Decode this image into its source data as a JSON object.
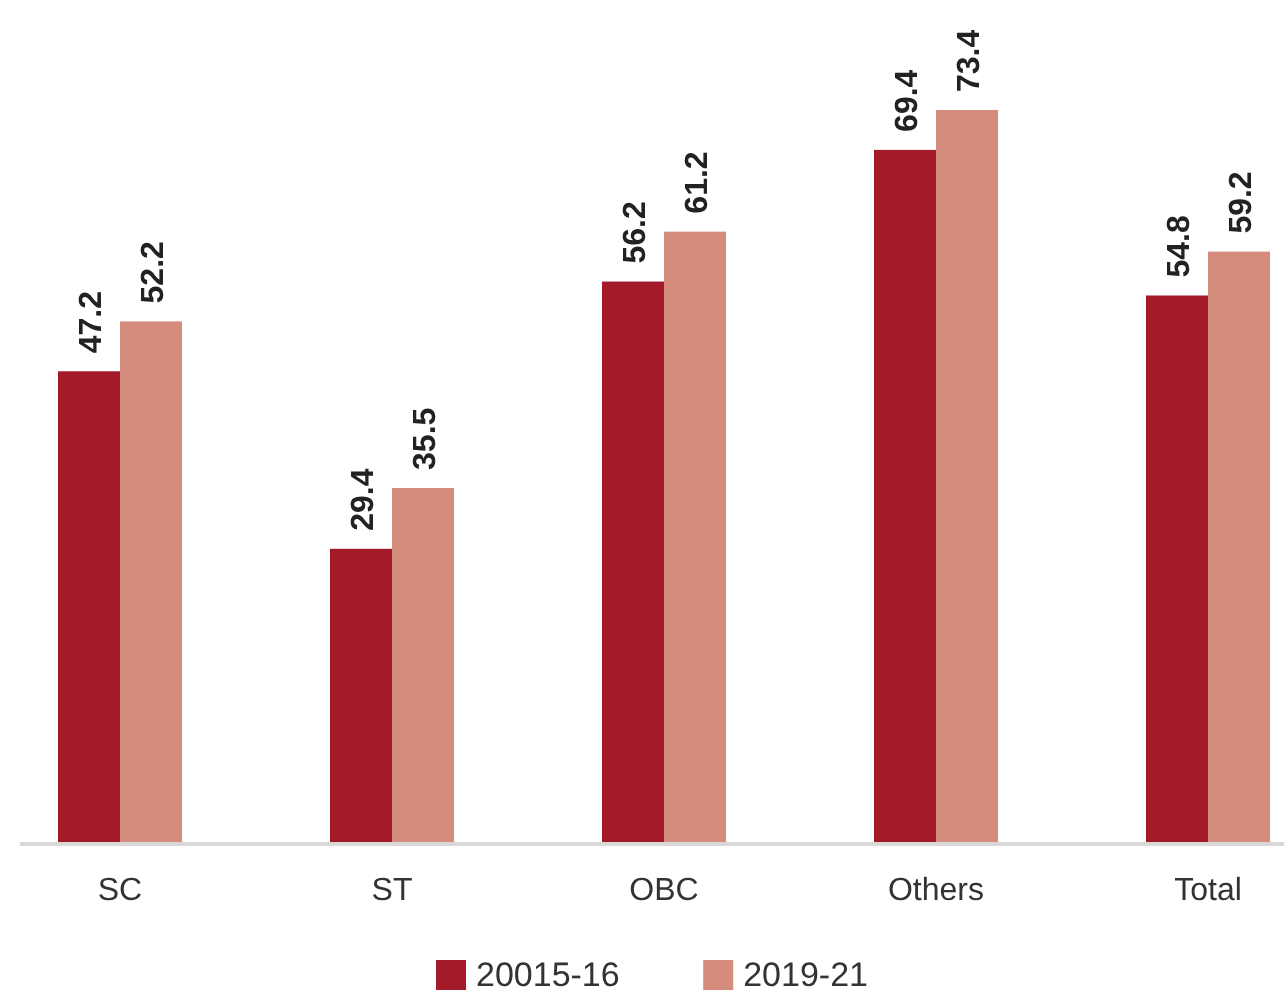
{
  "chart_data": {
    "type": "bar",
    "categories": [
      "SC",
      "ST",
      "OBC",
      "Others",
      "Total"
    ],
    "series": [
      {
        "name": "20015-16",
        "color": "#a31b2a",
        "values": [
          47.2,
          29.4,
          56.2,
          69.4,
          54.8
        ]
      },
      {
        "name": "2019-21",
        "color": "#d58c7c",
        "values": [
          52.2,
          35.5,
          61.2,
          73.4,
          59.2
        ]
      }
    ],
    "data_labels": true,
    "legend": "bottom",
    "tick_labels": "x"
  }
}
